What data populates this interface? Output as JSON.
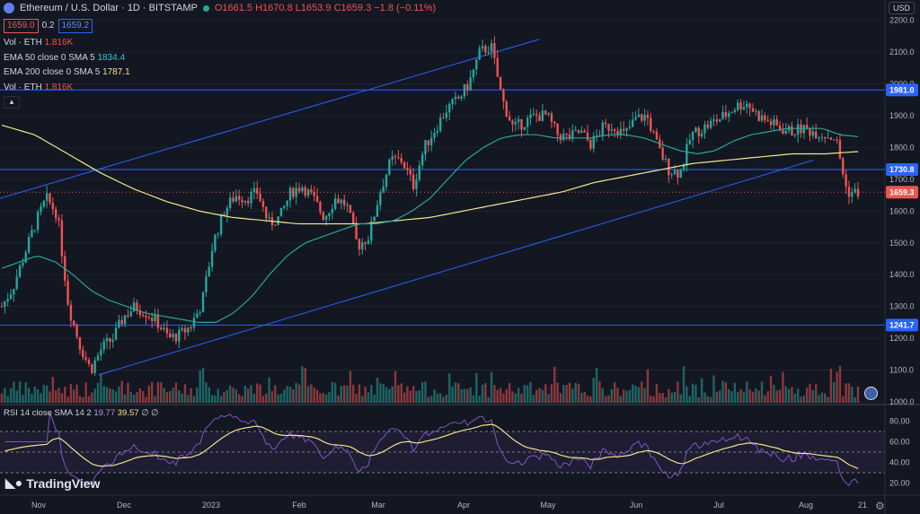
{
  "header": {
    "title": "Ethereum / U.S. Dollar · 1D · BITSTAMP",
    "open": "O1661.5",
    "high": "H1670.8",
    "low": "L1653.9",
    "close": "C1659.3",
    "change": "−1.8 (−0.11%)",
    "sell_price": "1659.0",
    "spread": "0.2",
    "buy_price": "1659.2",
    "currency": "USD"
  },
  "indicators": {
    "vol1_label": "Vol · ETH",
    "vol1_value": "1.816K",
    "ema50_label": "EMA 50 close 0 SMA 5",
    "ema50_value": "1834.4",
    "ema200_label": "EMA 200 close 0 SMA 5",
    "ema200_value": "1787.1",
    "vol2_label": "Vol · ETH",
    "vol2_value": "1.816K",
    "collapse_icon": "chevron-up-icon"
  },
  "rsi": {
    "label": "RSI 14 close SMA 14 2",
    "rsi_value": "19.77",
    "sma_value": "39.57",
    "extra": "∅ ∅"
  },
  "price_axis": [
    "2200.0",
    "2100.0",
    "2000.0",
    "1900.0",
    "1800.0",
    "1700.0",
    "1600.0",
    "1500.0",
    "1400.0",
    "1300.0",
    "1200.0",
    "1100.0",
    "1000.0"
  ],
  "price_tags": {
    "resistance": "1981.0",
    "mid": "1730.8",
    "last": "1659.3",
    "support": "1241.7"
  },
  "rsi_axis": [
    "80.00",
    "60.00",
    "40.00",
    "20.00"
  ],
  "time_axis": [
    "Nov",
    "Dec",
    "2023",
    "Feb",
    "Mar",
    "Apr",
    "May",
    "Jun",
    "Jul",
    "Aug",
    "21"
  ],
  "branding": "TradingView",
  "colors": {
    "bg": "#131722",
    "up": "#26a69a",
    "down": "#ef5350",
    "ema50": "#26a69a",
    "ema200": "#f0e68c",
    "lines": "#2962ff",
    "rsi": "#7e57c2",
    "rsi_sma": "#f5e08c"
  },
  "chart_data": {
    "type": "candlestick",
    "ylim": [
      1000,
      2230
    ],
    "horizontal_levels": [
      1981.0,
      1730.8,
      1241.7
    ],
    "last_price": 1659.3,
    "rsi_ylim": [
      10,
      90
    ],
    "rsi_bands": [
      70,
      30
    ],
    "close_path": [
      1300,
      1360,
      1460,
      1560,
      1640,
      1590,
      1300,
      1180,
      1100,
      1170,
      1200,
      1270,
      1300,
      1280,
      1250,
      1200,
      1210,
      1240,
      1310,
      1500,
      1600,
      1650,
      1640,
      1660,
      1560,
      1580,
      1660,
      1680,
      1640,
      1580,
      1640,
      1620,
      1490,
      1520,
      1660,
      1760,
      1760,
      1680,
      1800,
      1860,
      1920,
      1950,
      2000,
      2100,
      2120,
      1950,
      1860,
      1880,
      1900,
      1900,
      1840,
      1830,
      1850,
      1810,
      1860,
      1870,
      1840,
      1890,
      1900,
      1800,
      1730,
      1720,
      1840,
      1860,
      1880,
      1900,
      1930,
      1940,
      1900,
      1880,
      1860,
      1850,
      1860,
      1850,
      1840,
      1830,
      1660,
      1659
    ],
    "volume_scale": "relative",
    "ema50_path": [
      1420,
      1440,
      1460,
      1440,
      1400,
      1350,
      1320,
      1300,
      1280,
      1270,
      1260,
      1250,
      1250,
      1280,
      1330,
      1400,
      1460,
      1500,
      1520,
      1540,
      1560,
      1560,
      1570,
      1600,
      1640,
      1700,
      1760,
      1800,
      1830,
      1840,
      1840,
      1830,
      1830,
      1830,
      1840,
      1840,
      1830,
      1810,
      1790,
      1780,
      1790,
      1820,
      1840,
      1850,
      1860,
      1860,
      1860,
      1840,
      1834
    ],
    "ema200_path": [
      1870,
      1840,
      1780,
      1720,
      1670,
      1630,
      1600,
      1580,
      1570,
      1560,
      1560,
      1560,
      1570,
      1580,
      1600,
      1620,
      1640,
      1660,
      1690,
      1710,
      1730,
      1750,
      1760,
      1770,
      1780,
      1780,
      1787
    ]
  }
}
